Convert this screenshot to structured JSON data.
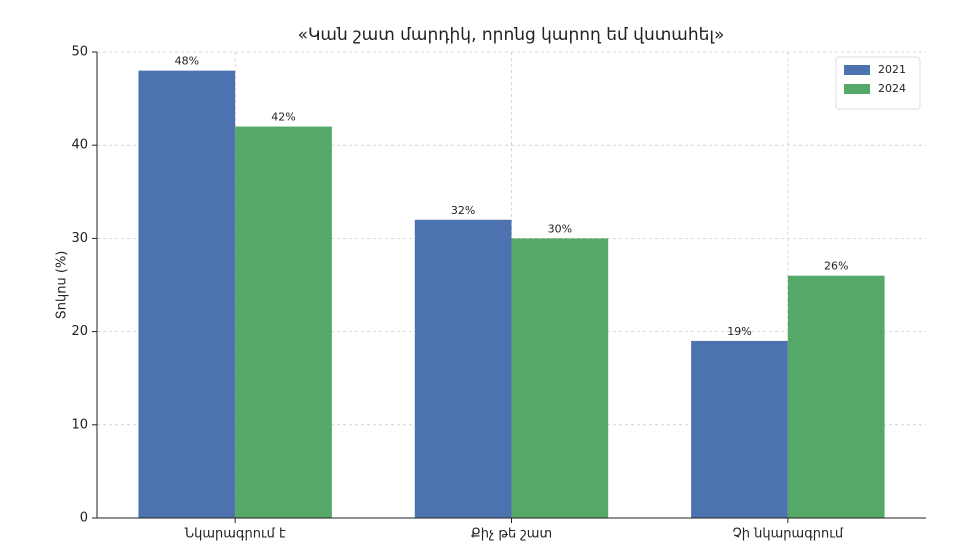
{
  "chart_data": {
    "type": "bar",
    "title": "«Կան շատ մարդիկ, որոնց կարող եմ վստահել»",
    "y_label": "Տոկոս (%)",
    "categories": [
      "Նկարագրում է",
      "Քիչ թե շատ",
      "Չի նկարագրում"
    ],
    "series": [
      {
        "name": "2021",
        "color": "#4c72b0",
        "values": [
          48,
          32,
          19
        ],
        "value_labels": [
          "48%",
          "32%",
          "19%"
        ]
      },
      {
        "name": "2024",
        "color": "#55a868",
        "values": [
          42,
          30,
          26
        ],
        "value_labels": [
          "42%",
          "30%",
          "26%"
        ]
      }
    ],
    "ylim": [
      0,
      50
    ],
    "yticks": [
      0,
      10,
      20,
      30,
      40,
      50
    ],
    "grid": true,
    "legend": "upper right"
  }
}
